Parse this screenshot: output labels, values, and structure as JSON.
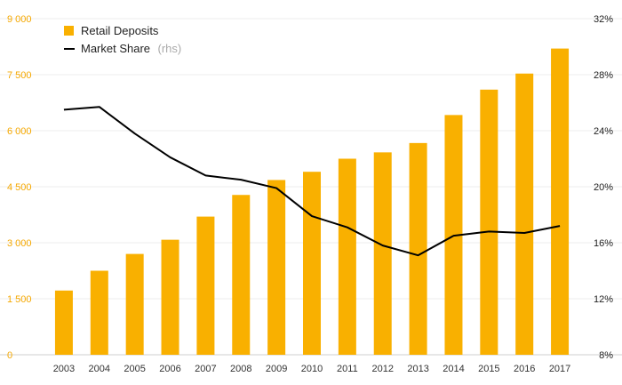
{
  "chart_data": {
    "type": "bar+line",
    "categories": [
      "2003",
      "2004",
      "2005",
      "2006",
      "2007",
      "2008",
      "2009",
      "2010",
      "2011",
      "2012",
      "2013",
      "2014",
      "2015",
      "2016",
      "2017"
    ],
    "series": [
      {
        "name": "Retail Deposits",
        "type": "bar",
        "axis": "left",
        "color": "#f9b000",
        "values": [
          1720,
          2250,
          2700,
          3080,
          3700,
          4280,
          4680,
          4900,
          5250,
          5420,
          5670,
          6420,
          7100,
          7530,
          8200
        ]
      },
      {
        "name": "Market Share",
        "type": "line",
        "axis": "right",
        "color": "#000000",
        "values": [
          25.5,
          25.7,
          23.8,
          22.1,
          20.8,
          20.5,
          19.9,
          17.9,
          17.1,
          15.8,
          15.1,
          16.5,
          16.8,
          16.7,
          17.2
        ]
      }
    ],
    "left_axis": {
      "min": 0,
      "max": 9000,
      "ticks": [
        0,
        1500,
        3000,
        4500,
        6000,
        7500,
        9000
      ],
      "tick_labels": [
        "0",
        "1 500",
        "3 000",
        "4 500",
        "6 000",
        "7 500",
        "9 000"
      ]
    },
    "right_axis": {
      "min": 8,
      "max": 32,
      "ticks": [
        8,
        12,
        16,
        20,
        24,
        28,
        32
      ],
      "tick_labels": [
        "8%",
        "12%",
        "16%",
        "20%",
        "24%",
        "28%",
        "32%"
      ]
    },
    "legend": {
      "position": "top-left",
      "items": [
        {
          "label": "Retail Deposits",
          "suffix": ""
        },
        {
          "label": "Market Share",
          "suffix": "(rhs)"
        }
      ]
    },
    "title": "",
    "xlabel": "",
    "ylabel": ""
  }
}
